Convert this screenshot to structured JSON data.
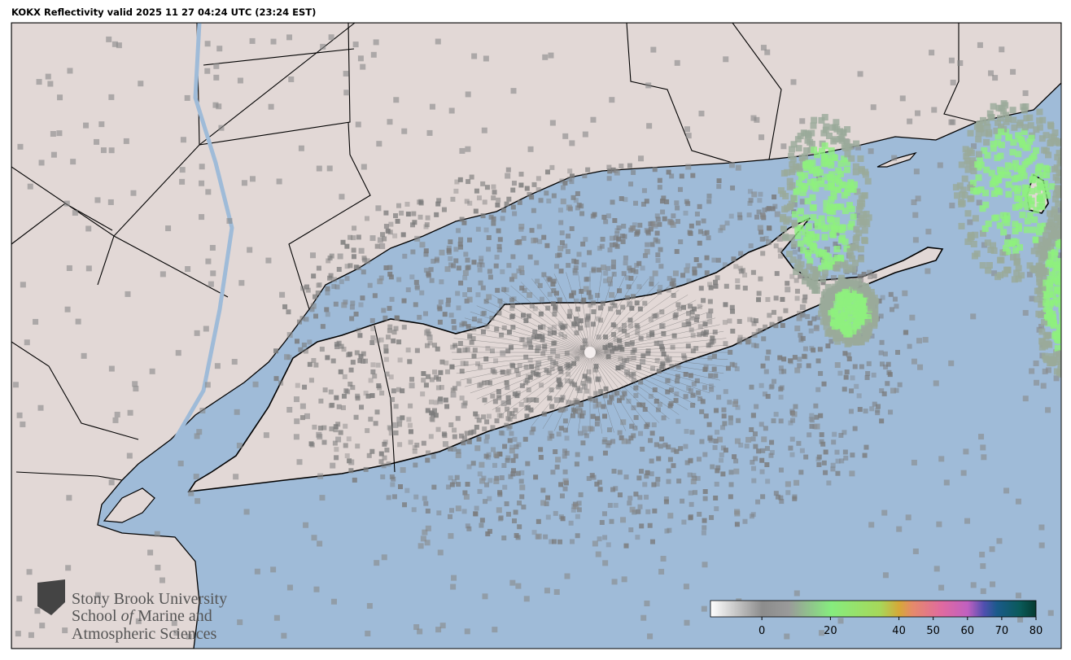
{
  "title": "KOKX Reflectivity valid 2025 11 27 04:24 UTC (23:24 EST)",
  "logo": {
    "line1": "Stony Brook University",
    "line2": [
      "School",
      "of",
      "Marine",
      "and"
    ],
    "line3": "Atmospheric Sciences"
  },
  "colorbar": {
    "clim": [
      -15,
      80
    ],
    "ticks": [
      0,
      20,
      40,
      50,
      60,
      70,
      80
    ]
  }
}
